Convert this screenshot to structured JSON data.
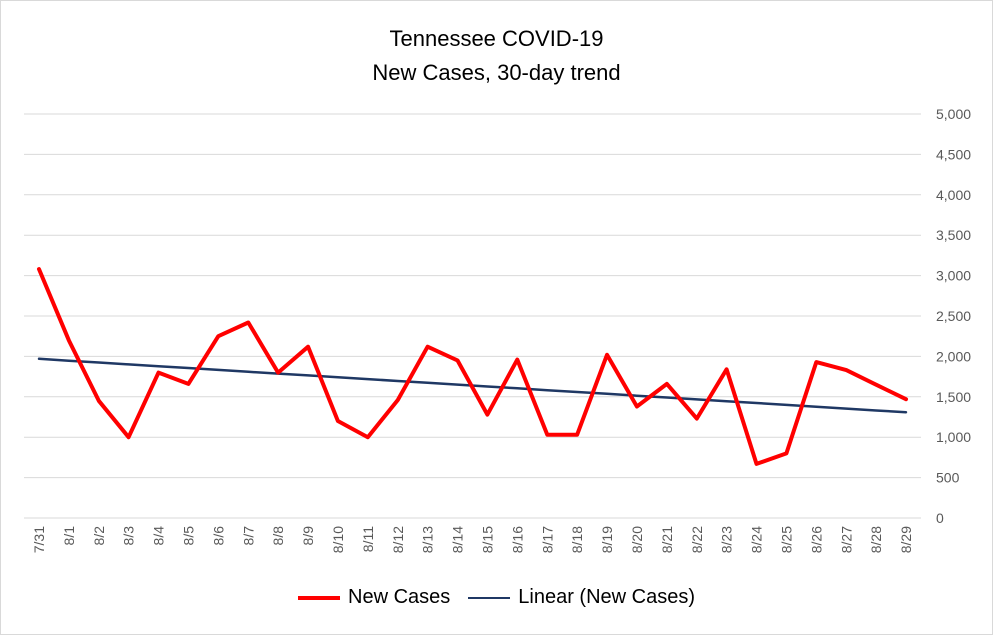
{
  "colors": {
    "new_cases": "#ff0000",
    "trend": "#1f3864",
    "grid": "#d9d9d9",
    "axis_text": "#595959"
  },
  "chart_data": {
    "type": "line",
    "title": "Tennessee COVID-19",
    "subtitle": "New Cases, 30-day trend",
    "categories": [
      "7/31",
      "8/1",
      "8/2",
      "8/3",
      "8/4",
      "8/5",
      "8/6",
      "8/7",
      "8/8",
      "8/9",
      "8/10",
      "8/11",
      "8/12",
      "8/13",
      "8/14",
      "8/15",
      "8/16",
      "8/17",
      "8/18",
      "8/19",
      "8/20",
      "8/21",
      "8/22",
      "8/23",
      "8/24",
      "8/25",
      "8/26",
      "8/27",
      "8/28",
      "8/29"
    ],
    "series": [
      {
        "name": "New Cases",
        "values": [
          3080,
          2200,
          1450,
          1000,
          1800,
          1660,
          2250,
          2420,
          1800,
          2120,
          1200,
          1000,
          1460,
          2120,
          1950,
          1280,
          1960,
          1030,
          1030,
          2020,
          1380,
          1660,
          1230,
          1840,
          670,
          800,
          1930,
          1830,
          1650,
          1470
        ]
      },
      {
        "name": "Linear (New Cases)",
        "values": [
          1970,
          1947,
          1924,
          1901,
          1879,
          1856,
          1833,
          1810,
          1787,
          1765,
          1742,
          1719,
          1696,
          1673,
          1651,
          1628,
          1605,
          1582,
          1559,
          1537,
          1514,
          1491,
          1468,
          1445,
          1423,
          1400,
          1377,
          1354,
          1331,
          1309
        ]
      }
    ],
    "y_axis": {
      "position": "right",
      "min": 0,
      "max": 5000,
      "step": 500,
      "tick_labels": [
        "0",
        "500",
        "1,000",
        "1,500",
        "2,000",
        "2,500",
        "3,000",
        "3,500",
        "4,000",
        "4,500",
        "5,000"
      ]
    },
    "x_tick_rotation": "vertical",
    "grid": true,
    "legend": "bottom"
  }
}
